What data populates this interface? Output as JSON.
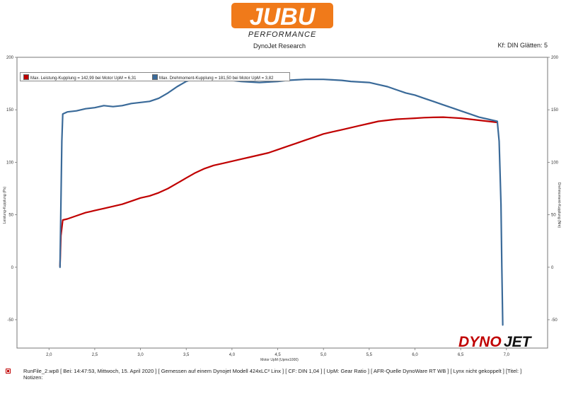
{
  "logo": {
    "top_text": "JUBU",
    "bottom_text": "PERFORMANCE",
    "color": "#f07a1a"
  },
  "header": {
    "subtitle": "DynoJet Research",
    "smoothing": "Kf: DIN Glätten: 5"
  },
  "legend": {
    "power": "Max. Leistung-Kupplung = 142,99 bei Motor UpM = 6,31",
    "torque": "Max. Drehmoment-Kupplung = 181,50 bei Motor UpM = 3,82"
  },
  "brand": {
    "dyno": "DYNO",
    "jet": "JET"
  },
  "footer": {
    "line1": "RunFile_2.wp8 [ Bei: 14:47:53, Mittwoch, 15. April 2020 ] [ Gemessen auf einem Dynojet Modell 424xLC² Linx ] [ CF: DIN 1,04 ] [ UpM: Gear Ratio ] [ AFR-Quelle  DynoWare RT WB ] [ Lynx nicht gekoppelt ] [Titel: ]",
    "line2": "Notizen:"
  },
  "chart_data": {
    "type": "line",
    "xlabel": "Motor UpM (Upmx1000)",
    "ylabel": "Leistung-Kupplung (Ps)",
    "y2label": "Drehmoment-Kupplung (Nm)",
    "xlim": [
      1.65,
      7.45
    ],
    "ylim": [
      -77,
      200
    ],
    "xticks": [
      "2,0",
      "2,5",
      "3,0",
      "3,5",
      "4,0",
      "4,5",
      "5,0",
      "5,5",
      "6,0",
      "6,5",
      "7,0"
    ],
    "yticks": [
      "200",
      "150",
      "100",
      "50",
      "0",
      "-50"
    ],
    "grid": false,
    "legend_position": "top-left",
    "series": [
      {
        "key": "power",
        "color": "#c00000",
        "x": [
          2.12,
          2.13,
          2.15,
          2.2,
          2.3,
          2.4,
          2.5,
          2.6,
          2.7,
          2.8,
          2.9,
          3.0,
          3.1,
          3.2,
          3.3,
          3.4,
          3.5,
          3.6,
          3.7,
          3.8,
          3.9,
          4.0,
          4.1,
          4.2,
          4.3,
          4.4,
          4.5,
          4.6,
          4.7,
          4.8,
          4.9,
          5.0,
          5.1,
          5.2,
          5.3,
          5.4,
          5.5,
          5.6,
          5.7,
          5.8,
          5.9,
          6.0,
          6.1,
          6.2,
          6.31,
          6.4,
          6.5,
          6.6,
          6.7,
          6.8,
          6.9
        ],
        "values": [
          1,
          30,
          45,
          46,
          49,
          52,
          54,
          56,
          58,
          60,
          63,
          66,
          68,
          71,
          75,
          80,
          85,
          90,
          94,
          97,
          99,
          101,
          103,
          105,
          107,
          109,
          112,
          115,
          118,
          121,
          124,
          127,
          129,
          131,
          133,
          135,
          137,
          139,
          140,
          141,
          141.5,
          142,
          142.5,
          142.8,
          142.99,
          142.5,
          142,
          141,
          140,
          139,
          138
        ]
      },
      {
        "key": "torque",
        "color": "#3a6a99",
        "x": [
          2.12,
          2.13,
          2.14,
          2.15,
          2.2,
          2.3,
          2.4,
          2.5,
          2.6,
          2.7,
          2.8,
          2.9,
          3.0,
          3.1,
          3.2,
          3.3,
          3.4,
          3.5,
          3.6,
          3.7,
          3.82,
          3.9,
          4.0,
          4.1,
          4.2,
          4.3,
          4.4,
          4.5,
          4.6,
          4.7,
          4.8,
          4.9,
          5.0,
          5.1,
          5.2,
          5.3,
          5.4,
          5.5,
          5.6,
          5.7,
          5.8,
          5.9,
          6.0,
          6.1,
          6.2,
          6.3,
          6.4,
          6.5,
          6.6,
          6.7,
          6.8,
          6.9,
          6.92,
          6.94,
          6.95,
          6.96
        ],
        "values": [
          0,
          60,
          120,
          146,
          148,
          149,
          151,
          152,
          154,
          153,
          154,
          156,
          157,
          158,
          161,
          166,
          172,
          177,
          180,
          181,
          181.5,
          180,
          178,
          177,
          176.5,
          176,
          176.5,
          177,
          178,
          178.5,
          179,
          179,
          179,
          178.5,
          178,
          177,
          176.5,
          176,
          174,
          172,
          169,
          166,
          164,
          161,
          158,
          155,
          152,
          149,
          146,
          143,
          141,
          139,
          120,
          60,
          0,
          -55
        ]
      }
    ]
  }
}
